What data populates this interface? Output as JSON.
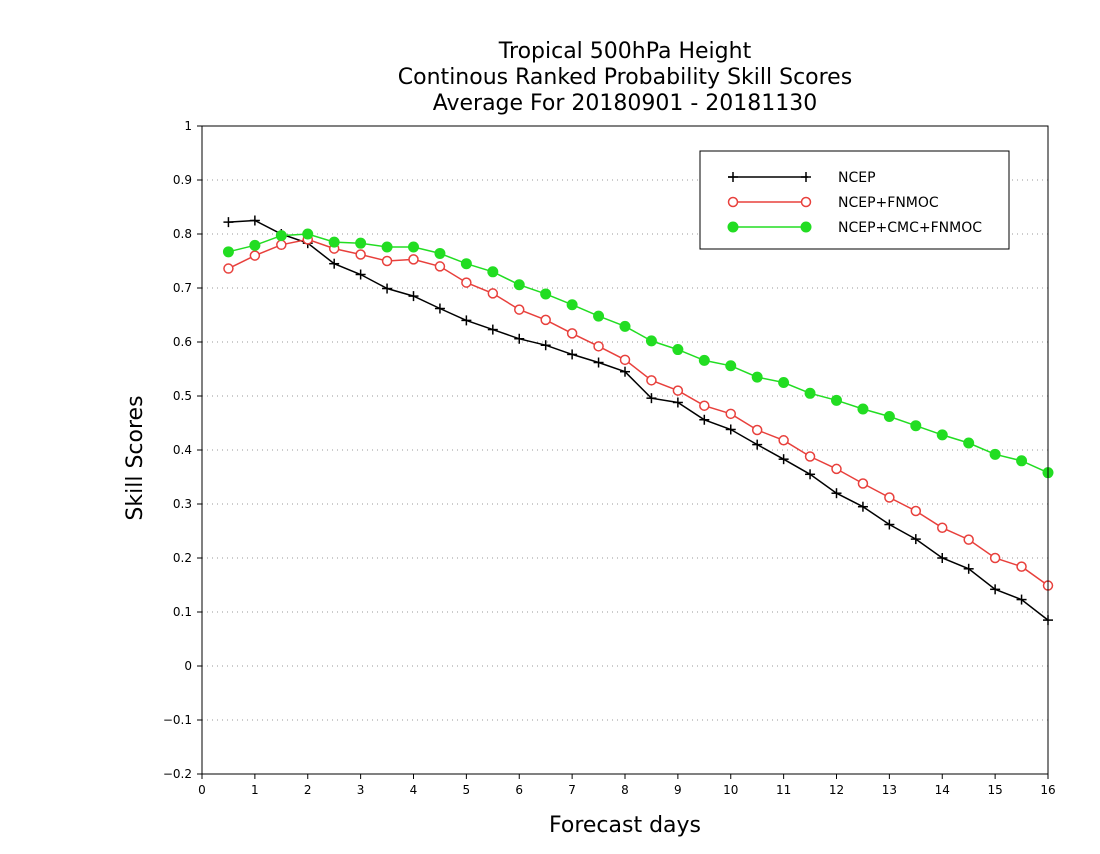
{
  "chart_data": {
    "type": "line",
    "title": [
      "Tropical 500hPa Height",
      "Continous Ranked Probability Skill Scores",
      "Average For 20180901 - 20181130"
    ],
    "xlabel": "Forecast days",
    "ylabel": "Skill Scores",
    "xlim": [
      0,
      16
    ],
    "ylim": [
      -0.2,
      1
    ],
    "xticks": [
      0,
      1,
      2,
      3,
      4,
      5,
      6,
      7,
      8,
      9,
      10,
      11,
      12,
      13,
      14,
      15,
      16
    ],
    "yticks": [
      -0.2,
      -0.1,
      0,
      0.1,
      0.2,
      0.3,
      0.4,
      0.5,
      0.6,
      0.7,
      0.8,
      0.9,
      1
    ],
    "grid": "horizontal-dotted",
    "legend_position": "top-right",
    "x": [
      0.5,
      1,
      1.5,
      2,
      2.5,
      3,
      3.5,
      4,
      4.5,
      5,
      5.5,
      6,
      6.5,
      7,
      7.5,
      8,
      8.5,
      9,
      9.5,
      10,
      10.5,
      11,
      11.5,
      12,
      12.5,
      13,
      13.5,
      14,
      14.5,
      15,
      15.5,
      16
    ],
    "series": [
      {
        "name": "NCEP",
        "color": "#000000",
        "marker": "plus",
        "values": [
          0.822,
          0.825,
          0.8,
          0.783,
          0.745,
          0.725,
          0.699,
          0.685,
          0.662,
          0.64,
          0.623,
          0.606,
          0.594,
          0.577,
          0.562,
          0.545,
          0.496,
          0.488,
          0.456,
          0.438,
          0.41,
          0.383,
          0.355,
          0.32,
          0.295,
          0.262,
          0.235,
          0.2,
          0.18,
          0.142,
          0.123,
          0.085
        ]
      },
      {
        "name": "NCEP+FNMOC",
        "color": "#e8403c",
        "marker": "open-circle",
        "values": [
          0.736,
          0.76,
          0.78,
          0.79,
          0.773,
          0.762,
          0.75,
          0.753,
          0.74,
          0.71,
          0.69,
          0.66,
          0.641,
          0.616,
          0.592,
          0.567,
          0.529,
          0.51,
          0.482,
          0.467,
          0.437,
          0.418,
          0.388,
          0.365,
          0.338,
          0.312,
          0.287,
          0.256,
          0.234,
          0.2,
          0.184,
          0.149
        ]
      },
      {
        "name": "NCEP+CMC+FNMOC",
        "color": "#22dd22",
        "marker": "filled-circle",
        "values": [
          0.767,
          0.779,
          0.797,
          0.8,
          0.785,
          0.783,
          0.776,
          0.776,
          0.764,
          0.745,
          0.73,
          0.706,
          0.689,
          0.669,
          0.648,
          0.629,
          0.602,
          0.586,
          0.566,
          0.556,
          0.535,
          0.525,
          0.505,
          0.492,
          0.476,
          0.462,
          0.445,
          0.428,
          0.413,
          0.392,
          0.38,
          0.358
        ]
      }
    ]
  }
}
